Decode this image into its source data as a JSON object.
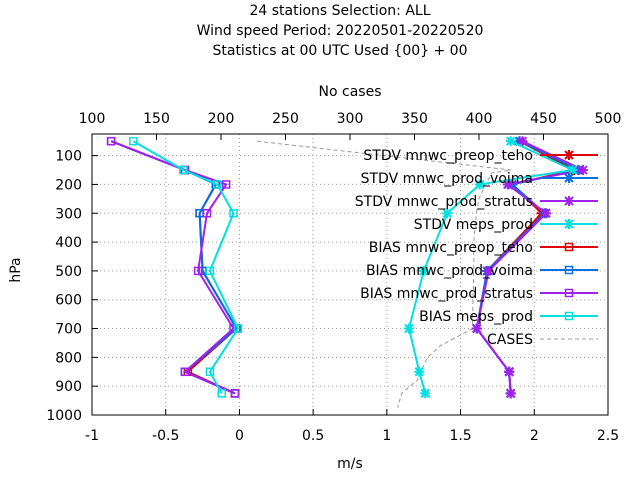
{
  "chart_data": {
    "type": "line",
    "title_lines": [
      "24 stations Selection: ALL",
      "Wind speed  Period: 20220501-20220520",
      "Statistics at 00 UTC  Used {00} + 00"
    ],
    "xlabel": "m/s",
    "ylabel": "hPa",
    "x2label": "No cases",
    "xlim": [
      -1,
      2.5
    ],
    "ylim": [
      1000,
      25
    ],
    "x2lim": [
      100,
      500
    ],
    "x_ticks": [
      "-1",
      "-0.5",
      "0",
      "0.5",
      "1",
      "1.5",
      "2",
      "2.5"
    ],
    "y_ticks": [
      "100",
      "200",
      "300",
      "400",
      "500",
      "600",
      "700",
      "800",
      "900",
      "1000"
    ],
    "x2_ticks": [
      "100",
      "150",
      "200",
      "250",
      "300",
      "350",
      "400",
      "450",
      "500"
    ],
    "legend_position": "top-right",
    "levels": [
      50,
      150,
      200,
      300,
      500,
      700,
      850,
      925
    ],
    "series": [
      {
        "name": "STDV mnwc_preop_teho",
        "kind": "stdv",
        "color": "#e00000",
        "x": [
          1.9,
          2.27,
          1.85,
          2.05,
          1.68,
          1.61,
          1.83,
          1.84
        ]
      },
      {
        "name": "STDV mnwc_prod_voima",
        "kind": "stdv",
        "color": "#0070e0",
        "x": [
          1.9,
          2.3,
          1.85,
          2.07,
          1.68,
          1.61,
          1.83,
          1.84
        ]
      },
      {
        "name": "STDV mnwc_prod_stratus",
        "kind": "stdv",
        "color": "#a020f0",
        "x": [
          1.92,
          2.33,
          1.82,
          2.08,
          1.69,
          1.61,
          1.83,
          1.84
        ]
      },
      {
        "name": "STDV meps_prod",
        "kind": "stdv",
        "color": "#00e0e0",
        "x": [
          1.84,
          2.26,
          1.63,
          1.41,
          1.25,
          1.15,
          1.22,
          1.26
        ]
      },
      {
        "name": "BIAS mnwc_preop_teho",
        "kind": "bias",
        "color": "#e00000",
        "x": [
          -0.87,
          -0.37,
          -0.16,
          -0.27,
          -0.25,
          -0.02,
          -0.35,
          -0.03
        ]
      },
      {
        "name": "BIAS mnwc_prod_voima",
        "kind": "bias",
        "color": "#0070e0",
        "x": [
          -0.87,
          -0.37,
          -0.16,
          -0.27,
          -0.25,
          -0.02,
          -0.37,
          -0.03
        ]
      },
      {
        "name": "BIAS mnwc_prod_stratus",
        "kind": "bias",
        "color": "#a020f0",
        "x": [
          -0.87,
          -0.37,
          -0.09,
          -0.22,
          -0.28,
          -0.04,
          -0.37,
          -0.03
        ]
      },
      {
        "name": "BIAS meps_prod",
        "kind": "bias",
        "color": "#00e0e0",
        "x": [
          -0.72,
          -0.38,
          -0.15,
          -0.04,
          -0.2,
          -0.01,
          -0.2,
          -0.12
        ]
      }
    ],
    "cases": {
      "name": "CASES",
      "color": "#999999",
      "points": [
        [
          228,
          50
        ],
        [
          425,
          150
        ],
        [
          410,
          160
        ],
        [
          405,
          200
        ],
        [
          400,
          250
        ],
        [
          398,
          300
        ],
        [
          396,
          400
        ],
        [
          396,
          500
        ],
        [
          395,
          650
        ],
        [
          395,
          700
        ],
        [
          370,
          760
        ],
        [
          360,
          800
        ],
        [
          352,
          880
        ],
        [
          340,
          925
        ],
        [
          337,
          975
        ]
      ]
    }
  }
}
